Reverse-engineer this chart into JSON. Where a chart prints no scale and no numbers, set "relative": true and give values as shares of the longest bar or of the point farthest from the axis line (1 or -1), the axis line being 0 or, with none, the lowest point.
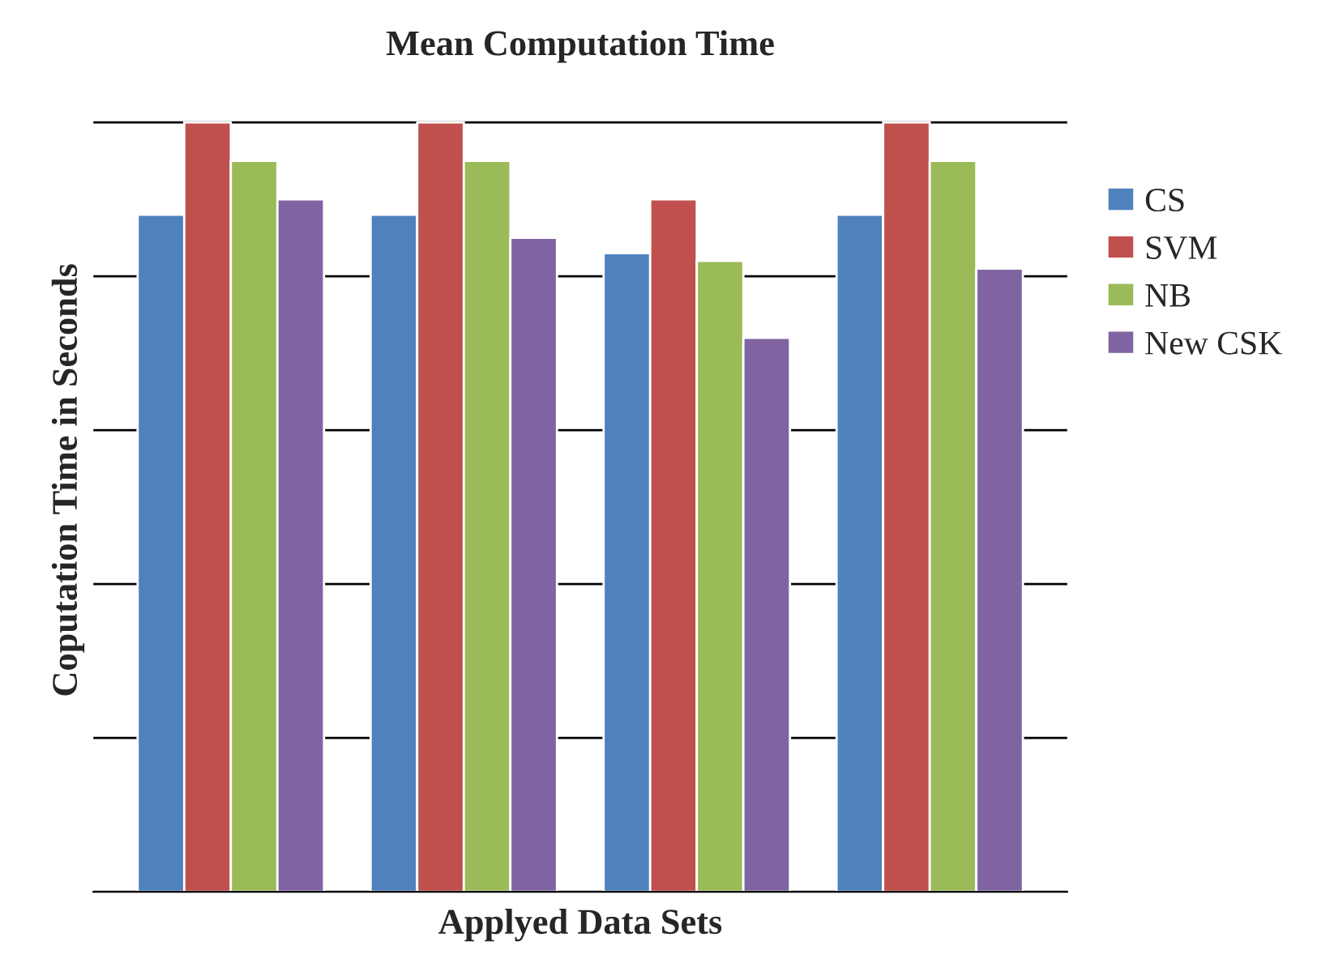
{
  "chart_data": {
    "type": "bar",
    "title": "Mean Computation Time",
    "xlabel": "Applyed Data Sets",
    "ylabel": "Coputation Time in Seconds",
    "categories": [
      null,
      null,
      null,
      null
    ],
    "relative": true,
    "grid": "y",
    "legend": "right",
    "series": [
      {
        "name": "CS",
        "color": "#4f81bd",
        "values": [
          0.88,
          0.88,
          0.83,
          0.88
        ]
      },
      {
        "name": "SVM",
        "color": "#c0504d",
        "values": [
          1,
          1,
          0.9,
          1
        ]
      },
      {
        "name": "NB",
        "color": "#9bbb59",
        "values": [
          0.95,
          0.95,
          0.82,
          0.95
        ]
      },
      {
        "name": "New CSK",
        "color": "#8064a2",
        "values": [
          0.9,
          0.85,
          0.72,
          0.81
        ]
      }
    ]
  }
}
